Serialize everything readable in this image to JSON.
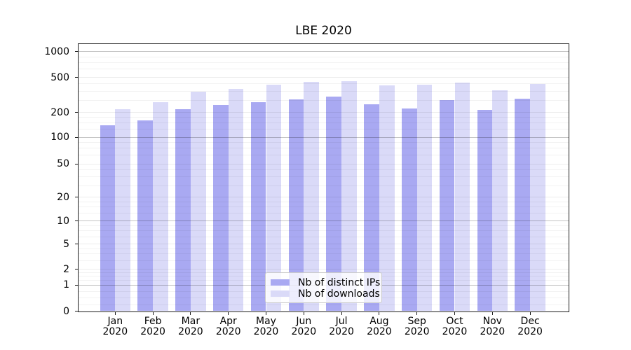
{
  "title": "LBE 2020",
  "chart_data": {
    "type": "bar",
    "title": "LBE 2020",
    "categories": [
      "Jan",
      "Feb",
      "Mar",
      "Apr",
      "May",
      "Jun",
      "Jul",
      "Aug",
      "Sep",
      "Oct",
      "Nov",
      "Dec"
    ],
    "year_label": "2020",
    "series": [
      {
        "name": "Nb of distinct IPs",
        "color": "#a9a9f2",
        "values": [
          140,
          160,
          219,
          242,
          262,
          280,
          304,
          246,
          221,
          278,
          215,
          287
        ]
      },
      {
        "name": "Nb of downloads",
        "color": "#dadaf8",
        "values": [
          218,
          263,
          347,
          373,
          414,
          443,
          457,
          409,
          414,
          440,
          357,
          422
        ]
      }
    ],
    "y_ticks": [
      0,
      1,
      2,
      5,
      10,
      20,
      50,
      100,
      200,
      500,
      1000
    ],
    "ylabel": "",
    "xlabel": "",
    "y_scale": "log-like (1-2-5 ticks, compressed toward 0)",
    "ylim": [
      0,
      1230
    ],
    "grid": true,
    "legend_position": "lower center"
  }
}
